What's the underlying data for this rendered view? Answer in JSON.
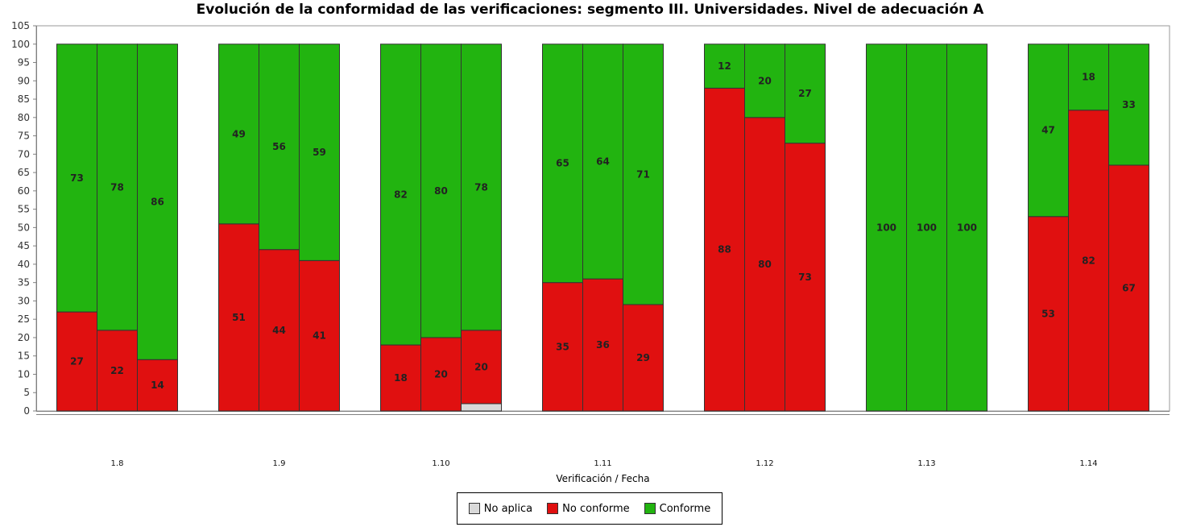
{
  "chart_data": {
    "type": "bar",
    "stacked": true,
    "title": "Evolución de la conformidad de las verificaciones: segmento III. Universidades. Nivel de adecuación A",
    "xlabel": "Verificación / Fecha",
    "ylabel": "",
    "ylim": [
      0,
      105
    ],
    "yticks": [
      0,
      5,
      10,
      15,
      20,
      25,
      30,
      35,
      40,
      45,
      50,
      55,
      60,
      65,
      70,
      75,
      80,
      85,
      90,
      95,
      100,
      105
    ],
    "grid": false,
    "legend_position": "bottom",
    "categories": [
      "1.8",
      "1.9",
      "1.10",
      "1.11",
      "1.12",
      "1.13",
      "1.14"
    ],
    "bars_per_category": 3,
    "series": [
      {
        "name": "No aplica",
        "color": "#d9d9d9",
        "values": [
          [
            0,
            0,
            0
          ],
          [
            0,
            0,
            0
          ],
          [
            0,
            0,
            2
          ],
          [
            0,
            0,
            0
          ],
          [
            0,
            0,
            0
          ],
          [
            0,
            0,
            0
          ],
          [
            0,
            0,
            0
          ]
        ],
        "labels": [
          [
            "",
            "",
            ""
          ],
          [
            "",
            "",
            ""
          ],
          [
            "",
            "",
            ""
          ],
          [
            "",
            "",
            ""
          ],
          [
            "",
            "",
            ""
          ],
          [
            "",
            "",
            ""
          ],
          [
            "",
            "",
            ""
          ]
        ]
      },
      {
        "name": "No conforme",
        "color": "#e01010",
        "values": [
          [
            27,
            22,
            14
          ],
          [
            51,
            44,
            41
          ],
          [
            18,
            20,
            20
          ],
          [
            35,
            36,
            29
          ],
          [
            88,
            80,
            73
          ],
          [
            0,
            0,
            0
          ],
          [
            53,
            82,
            67
          ]
        ],
        "labels": [
          [
            "27",
            "22",
            "14"
          ],
          [
            "51",
            "44",
            "41"
          ],
          [
            "18",
            "20",
            "20"
          ],
          [
            "35",
            "36",
            "29"
          ],
          [
            "88",
            "80",
            "73"
          ],
          [
            "",
            "",
            ""
          ],
          [
            "53",
            "82",
            "67"
          ]
        ]
      },
      {
        "name": "Conforme",
        "color": "#22b410",
        "values": [
          [
            73,
            78,
            86
          ],
          [
            49,
            56,
            59
          ],
          [
            82,
            80,
            78
          ],
          [
            65,
            64,
            71
          ],
          [
            12,
            20,
            27
          ],
          [
            100,
            100,
            100
          ],
          [
            47,
            18,
            33
          ]
        ],
        "labels": [
          [
            "73",
            "78",
            "86"
          ],
          [
            "49",
            "56",
            "59"
          ],
          [
            "82",
            "80",
            "78"
          ],
          [
            "65",
            "64",
            "71"
          ],
          [
            "12",
            "20",
            "27"
          ],
          [
            "100",
            "100",
            "100"
          ],
          [
            "47",
            "18",
            "33"
          ]
        ]
      }
    ]
  }
}
